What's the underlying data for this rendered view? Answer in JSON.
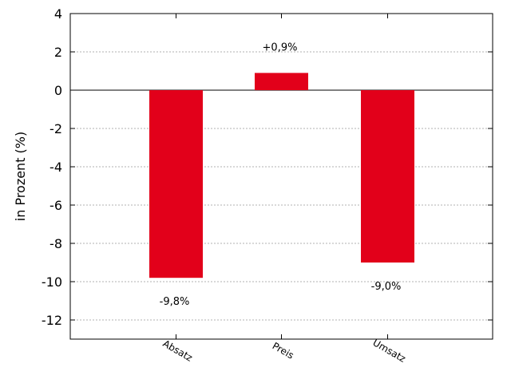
{
  "chart_data": {
    "type": "bar",
    "title": "",
    "xlabel": "",
    "ylabel": "in Prozent (%)",
    "categories": [
      "Absatz",
      "Preis",
      "Umsatz"
    ],
    "values": [
      -9.8,
      0.9,
      -9.0
    ],
    "data_labels": [
      "-9,8%",
      "+0,9%",
      "-9,0%"
    ],
    "ylim": [
      -13,
      4
    ],
    "yticks": [
      4,
      2,
      0,
      -2,
      -4,
      -6,
      -8,
      -10,
      -12
    ],
    "grid": true,
    "bar_color": "#e2001a"
  }
}
